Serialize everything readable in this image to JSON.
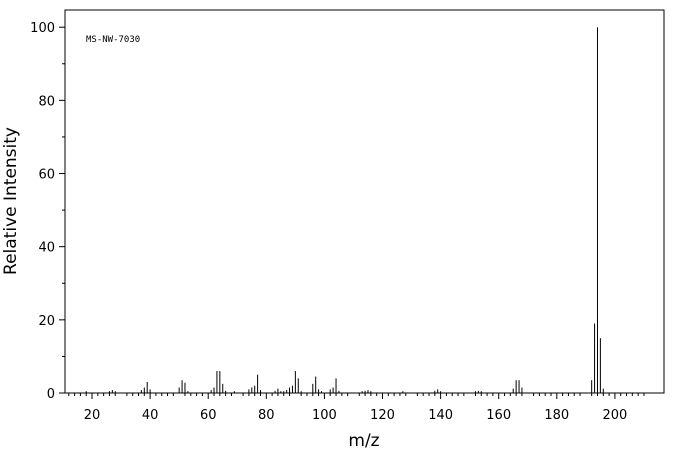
{
  "chart_data": {
    "type": "bar",
    "annotation": "MS-NW-7030",
    "xlabel": "m/z",
    "ylabel": "Relative Intensity",
    "color": "#000000",
    "xlim": [
      10.7,
      216.9
    ],
    "ylim": [
      0,
      104.7
    ],
    "xticks": [
      20,
      40,
      60,
      80,
      100,
      120,
      140,
      160,
      180,
      200
    ],
    "yticks": [
      0,
      20,
      40,
      60,
      80,
      100
    ],
    "xminorticks": [
      12,
      14,
      16,
      18,
      22,
      24,
      26,
      28,
      32,
      34,
      36,
      38,
      42,
      44,
      46,
      48,
      52,
      54,
      56,
      58,
      62,
      64,
      66,
      68,
      72,
      74,
      76,
      78,
      82,
      84,
      86,
      88,
      92,
      94,
      96,
      98,
      102,
      104,
      106,
      108,
      112,
      114,
      116,
      118,
      122,
      124,
      126,
      128,
      132,
      134,
      136,
      138,
      142,
      144,
      146,
      148,
      152,
      154,
      156,
      158,
      162,
      164,
      166,
      168,
      172,
      174,
      176,
      178,
      182,
      184,
      186,
      188,
      192,
      194,
      196,
      198,
      202,
      204,
      206,
      208,
      210
    ],
    "yminorticks": [
      10,
      30,
      50,
      70,
      90
    ],
    "x": [
      18,
      26,
      27,
      28,
      37,
      38,
      39,
      40,
      50,
      51,
      52,
      53,
      61,
      62,
      63,
      64,
      65,
      66,
      69,
      74,
      75,
      76,
      77,
      78,
      83,
      84,
      85,
      86,
      87,
      88,
      89,
      90,
      91,
      92,
      96,
      97,
      98,
      99,
      102,
      103,
      104,
      105,
      113,
      114,
      115,
      116,
      127,
      138,
      139,
      140,
      152,
      153,
      154,
      165,
      166,
      167,
      168,
      192,
      193,
      194,
      195,
      196
    ],
    "values": [
      0.5,
      0.5,
      0.8,
      0.5,
      0.8,
      1.5,
      3,
      1,
      1.5,
      3.5,
      2.8,
      0.5,
      0.8,
      1.5,
      6,
      6,
      2.5,
      0.6,
      0.5,
      1,
      1.5,
      2,
      5,
      0.8,
      0.6,
      1.2,
      0.5,
      0.5,
      0.8,
      1.5,
      2,
      6,
      4,
      0.5,
      2.5,
      4.5,
      1,
      0.5,
      1,
      1.5,
      4,
      0.6,
      0.5,
      0.6,
      0.8,
      0.5,
      0.5,
      0.6,
      1,
      0.5,
      0.5,
      0.6,
      0.5,
      1.2,
      3.5,
      3.5,
      1.5,
      3.5,
      19,
      100,
      15,
      1.2
    ]
  }
}
